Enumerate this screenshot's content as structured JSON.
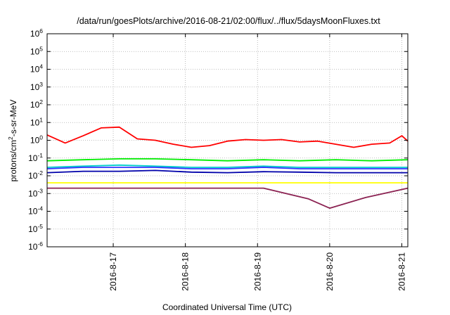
{
  "chart_data": {
    "type": "line",
    "title": "/data/run/goesPlots/archive/2016-08-21/02:00/flux/../flux/5daysMoonFluxes.txt",
    "xlabel": "Coordinated Universal Time (UTC)",
    "ylabel": {
      "pre": "protons/cm",
      "sup": "2",
      "post": "-s-sr-MeV"
    },
    "yscale": "log",
    "ylim": [
      1e-06,
      1000000.0
    ],
    "y_ticks": [
      {
        "base": "10",
        "exp": "-6",
        "value": 1e-06
      },
      {
        "base": "10",
        "exp": "-5",
        "value": 1e-05
      },
      {
        "base": "10",
        "exp": "-4",
        "value": 0.0001
      },
      {
        "base": "10",
        "exp": "-3",
        "value": 0.001
      },
      {
        "base": "10",
        "exp": "-2",
        "value": 0.01
      },
      {
        "base": "10",
        "exp": "-1",
        "value": 0.1
      },
      {
        "base": "10",
        "exp": "0",
        "value": 1
      },
      {
        "base": "10",
        "exp": "1",
        "value": 10
      },
      {
        "base": "10",
        "exp": "2",
        "value": 100
      },
      {
        "base": "10",
        "exp": "3",
        "value": 1000
      },
      {
        "base": "10",
        "exp": "4",
        "value": 10000
      },
      {
        "base": "10",
        "exp": "5",
        "value": 100000
      },
      {
        "base": "10",
        "exp": "6",
        "value": 1000000
      }
    ],
    "xlim": [
      "2016-08-16T02:00",
      "2016-08-21T02:00"
    ],
    "x_ticks": [
      {
        "label": "2016-8-17",
        "value": "2016-08-17T00:00"
      },
      {
        "label": "2016-8-18",
        "value": "2016-08-18T00:00"
      },
      {
        "label": "2016-8-19",
        "value": "2016-08-19T00:00"
      },
      {
        "label": "2016-8-20",
        "value": "2016-08-20T00:00"
      },
      {
        "label": "2016-8-21",
        "value": "2016-08-21T00:00"
      }
    ],
    "grid": true,
    "series": [
      {
        "color": "#ff0000",
        "x": [
          "2016-08-16T02:00",
          "2016-08-16T08:00",
          "2016-08-16T14:00",
          "2016-08-16T20:00",
          "2016-08-17T02:00",
          "2016-08-17T08:00",
          "2016-08-17T14:00",
          "2016-08-17T20:00",
          "2016-08-18T02:00",
          "2016-08-18T08:00",
          "2016-08-18T14:00",
          "2016-08-18T20:00",
          "2016-08-19T02:00",
          "2016-08-19T08:00",
          "2016-08-19T14:00",
          "2016-08-19T20:00",
          "2016-08-20T02:00",
          "2016-08-20T08:00",
          "2016-08-20T14:00",
          "2016-08-20T20:00",
          "2016-08-21T00:00",
          "2016-08-21T02:00"
        ],
        "values": [
          2.0,
          0.7,
          1.8,
          5.0,
          5.5,
          1.2,
          1.0,
          0.6,
          0.4,
          0.5,
          0.9,
          1.1,
          1.0,
          1.1,
          0.8,
          0.9,
          0.6,
          0.4,
          0.6,
          0.7,
          1.8,
          0.9
        ]
      },
      {
        "color": "#00ee00",
        "x": [
          "2016-08-16T02:00",
          "2016-08-16T14:00",
          "2016-08-17T02:00",
          "2016-08-17T14:00",
          "2016-08-18T02:00",
          "2016-08-18T14:00",
          "2016-08-19T02:00",
          "2016-08-19T14:00",
          "2016-08-20T02:00",
          "2016-08-20T14:00",
          "2016-08-21T02:00"
        ],
        "values": [
          0.07,
          0.08,
          0.09,
          0.09,
          0.08,
          0.07,
          0.08,
          0.07,
          0.08,
          0.07,
          0.08
        ]
      },
      {
        "color": "#00cccc",
        "x": [
          "2016-08-16T02:00",
          "2016-08-16T14:00",
          "2016-08-17T02:00",
          "2016-08-17T14:00",
          "2016-08-18T02:00",
          "2016-08-18T14:00",
          "2016-08-19T02:00",
          "2016-08-19T14:00",
          "2016-08-20T02:00",
          "2016-08-20T14:00",
          "2016-08-21T02:00"
        ],
        "values": [
          0.03,
          0.035,
          0.04,
          0.035,
          0.03,
          0.03,
          0.035,
          0.03,
          0.03,
          0.03,
          0.03
        ]
      },
      {
        "color": "#3333ff",
        "x": [
          "2016-08-16T02:00",
          "2016-08-16T14:00",
          "2016-08-17T02:00",
          "2016-08-17T14:00",
          "2016-08-18T02:00",
          "2016-08-18T14:00",
          "2016-08-19T02:00",
          "2016-08-19T14:00",
          "2016-08-20T02:00",
          "2016-08-20T14:00",
          "2016-08-21T02:00"
        ],
        "values": [
          0.025,
          0.03,
          0.03,
          0.03,
          0.025,
          0.025,
          0.03,
          0.025,
          0.025,
          0.025,
          0.025
        ]
      },
      {
        "color": "#0000aa",
        "x": [
          "2016-08-16T02:00",
          "2016-08-16T14:00",
          "2016-08-17T02:00",
          "2016-08-17T14:00",
          "2016-08-18T02:00",
          "2016-08-18T14:00",
          "2016-08-19T02:00",
          "2016-08-19T14:00",
          "2016-08-20T02:00",
          "2016-08-20T14:00",
          "2016-08-21T02:00"
        ],
        "values": [
          0.015,
          0.018,
          0.018,
          0.02,
          0.016,
          0.015,
          0.017,
          0.016,
          0.015,
          0.015,
          0.015
        ]
      },
      {
        "color": "#ffff00",
        "x": [
          "2016-08-16T02:00",
          "2016-08-17T02:00",
          "2016-08-18T02:00",
          "2016-08-19T02:00",
          "2016-08-20T02:00",
          "2016-08-21T02:00"
        ],
        "values": [
          0.004,
          0.004,
          0.004,
          0.004,
          0.004,
          0.004
        ]
      },
      {
        "color": "#8b2252",
        "x": [
          "2016-08-16T02:00",
          "2016-08-17T02:00",
          "2016-08-18T02:00",
          "2016-08-19T02:00",
          "2016-08-19T17:00",
          "2016-08-20T00:00",
          "2016-08-20T12:00",
          "2016-08-21T02:00"
        ],
        "values": [
          0.002,
          0.002,
          0.002,
          0.002,
          0.0005,
          0.00015,
          0.0006,
          0.002
        ]
      }
    ]
  }
}
